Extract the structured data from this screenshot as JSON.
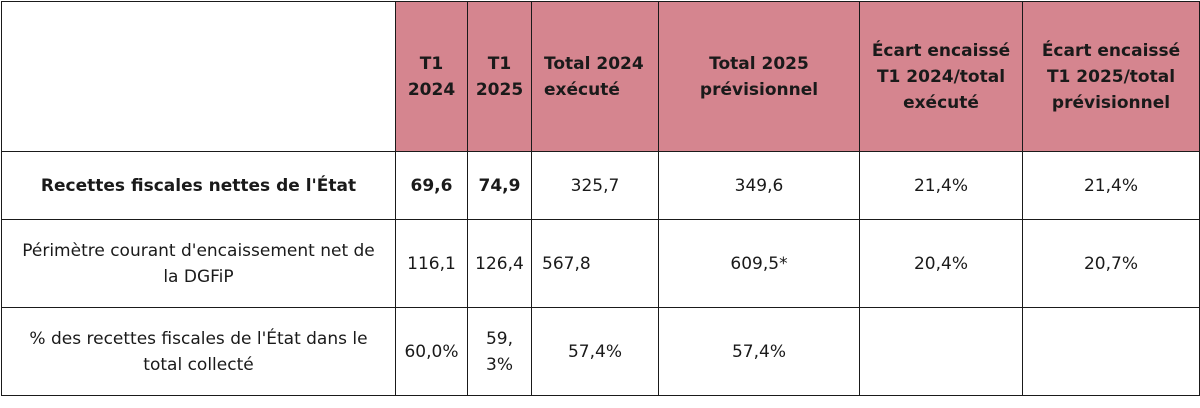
{
  "headers": [
    "",
    "T1 2024",
    "T1 2025",
    "Total 2024 exécuté",
    "Total 2025 prévisionnel",
    "Écart encaissé T1 2024/total exécuté",
    "Écart encaissé T1 2025/total prévisionnel"
  ],
  "rows": [
    {
      "label": "Recettes fiscales nettes de l'État",
      "t1_2024": "69,6",
      "t1_2025": "74,9",
      "total_2024": "325,7",
      "total_2025": "349,6",
      "ecart_2024": "21,4%",
      "ecart_2025": "21,4%"
    },
    {
      "label": "Périmètre courant d'encaissement net de la DGFiP",
      "t1_2024": "116,1",
      "t1_2025": "126,4",
      "total_2024": "567,8",
      "total_2025": "609,5*",
      "ecart_2024": "20,4%",
      "ecart_2025": "20,7%"
    },
    {
      "label": "% des recettes fiscales de l'État dans le total collecté",
      "t1_2024": "60,0%",
      "t1_2025": "59,3%",
      "total_2024": "57,4%",
      "total_2025": "57,4%",
      "ecart_2024": "",
      "ecart_2025": ""
    }
  ]
}
